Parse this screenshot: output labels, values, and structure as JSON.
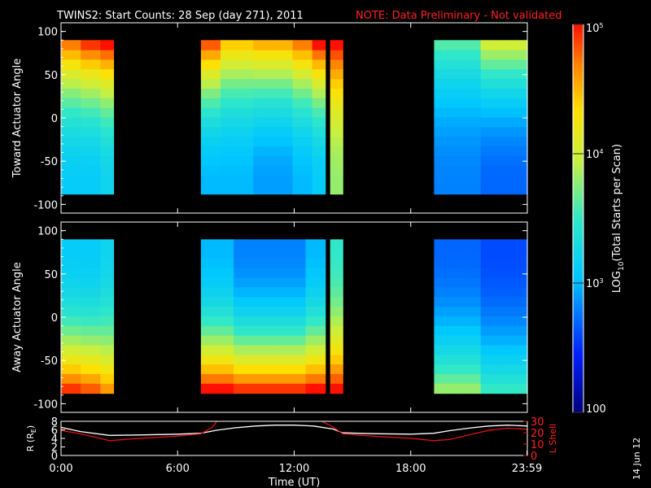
{
  "title": "TWINS2: Start Counts: 28 Sep (day 271), 2011",
  "note": "NOTE: Data Preliminary - Not validated",
  "datestamp": "14 Jun 12",
  "colors": {
    "background": "#000000",
    "note": "#ff2020",
    "r_line": "#ffffff",
    "l_line": "#e01010"
  },
  "chart_data": [
    {
      "type": "heatmap",
      "name": "toward",
      "ylabel": "Toward Actuator Angle",
      "xlim": [
        0,
        24
      ],
      "ylim": [
        -110,
        110
      ],
      "yticks": [
        100,
        50,
        0,
        -50,
        -100
      ],
      "data_y_range": [
        -88,
        90
      ],
      "time_segments": [
        [
          0.0,
          2.7
        ],
        [
          7.2,
          13.6
        ],
        [
          13.85,
          14.5
        ],
        [
          19.2,
          24.0
        ]
      ],
      "log_counts_by_time": [
        {
          "t": 0.5,
          "lo": 3.1,
          "hi": 4.7
        },
        {
          "t": 1.5,
          "lo": 3.1,
          "hi": 4.9
        },
        {
          "t": 2.5,
          "lo": 3.2,
          "hi": 5.0
        },
        {
          "t": 7.5,
          "lo": 3.0,
          "hi": 4.8
        },
        {
          "t": 9.0,
          "lo": 3.0,
          "hi": 4.4
        },
        {
          "t": 11.0,
          "lo": 2.9,
          "hi": 4.5
        },
        {
          "t": 12.5,
          "lo": 3.0,
          "hi": 4.7
        },
        {
          "t": 13.4,
          "lo": 3.1,
          "hi": 5.0
        },
        {
          "t": 14.2,
          "lo": 3.8,
          "hi": 5.0
        },
        {
          "t": 20.0,
          "lo": 2.8,
          "hi": 3.6
        },
        {
          "t": 23.5,
          "lo": 2.7,
          "hi": 4.0
        }
      ]
    },
    {
      "type": "heatmap",
      "name": "away",
      "ylabel": "Away Actuator Angle",
      "xlim": [
        0,
        24
      ],
      "ylim": [
        -110,
        110
      ],
      "yticks": [
        100,
        50,
        0,
        -50,
        -100
      ],
      "data_y_range": [
        -88,
        90
      ],
      "time_segments": [
        [
          0.0,
          2.7
        ],
        [
          7.2,
          13.6
        ],
        [
          13.85,
          14.5
        ],
        [
          19.2,
          24.0
        ]
      ],
      "log_counts_by_time": [
        {
          "t": 0.5,
          "lo": 3.1,
          "hi": 4.9
        },
        {
          "t": 1.5,
          "lo": 3.1,
          "hi": 4.8
        },
        {
          "t": 2.5,
          "lo": 3.2,
          "hi": 4.6
        },
        {
          "t": 7.5,
          "lo": 3.0,
          "hi": 5.0
        },
        {
          "t": 10.0,
          "lo": 2.8,
          "hi": 4.9
        },
        {
          "t": 12.0,
          "lo": 2.8,
          "hi": 4.9
        },
        {
          "t": 13.4,
          "lo": 3.0,
          "hi": 5.0
        },
        {
          "t": 14.2,
          "lo": 3.5,
          "hi": 5.0
        },
        {
          "t": 20.0,
          "lo": 2.7,
          "hi": 3.8
        },
        {
          "t": 23.5,
          "lo": 2.6,
          "hi": 3.5
        }
      ]
    },
    {
      "type": "line",
      "name": "orbit",
      "xlabel": "Time (UT)",
      "ylabel_left": "R (R",
      "ylabel_left_sub": "E",
      "ylabel_left_end": ")",
      "ylabel_right": "L Shell",
      "xlim": [
        0,
        24
      ],
      "xticks": [
        {
          "v": 0,
          "label": "0:00"
        },
        {
          "v": 6,
          "label": "6:00"
        },
        {
          "v": 12,
          "label": "12:00"
        },
        {
          "v": 18,
          "label": "18:00"
        },
        {
          "v": 23.983,
          "label": "23:59"
        }
      ],
      "ylim_left": [
        0,
        8
      ],
      "yticks_left": [
        8,
        6,
        4,
        2,
        0
      ],
      "ylim_right": [
        0,
        30
      ],
      "yticks_right": [
        30,
        20,
        10,
        0
      ],
      "series": [
        {
          "axis": "left",
          "x": [
            0,
            1,
            2.5,
            4,
            6,
            7.2,
            8,
            9,
            10,
            11,
            12,
            13,
            14,
            14.5,
            16,
            18,
            19.2,
            20,
            21,
            22,
            23,
            24
          ],
          "y": [
            6.6,
            5.6,
            4.7,
            4.8,
            5.0,
            5.2,
            5.9,
            6.5,
            6.9,
            7.1,
            7.1,
            6.9,
            6.2,
            5.3,
            5.1,
            5.0,
            5.2,
            5.8,
            6.4,
            6.9,
            7.1,
            6.9
          ]
        },
        {
          "axis": "right",
          "x": [
            0,
            1,
            2.5,
            4,
            6,
            7.2,
            7.8,
            8.1,
            13.2,
            14.0,
            14.5,
            16,
            18,
            19.2,
            20,
            21,
            22,
            23,
            24
          ],
          "y": [
            22,
            19,
            13,
            15,
            17,
            19,
            25,
            32,
            32,
            25,
            19,
            17,
            15,
            13,
            14,
            18,
            22,
            24,
            23
          ]
        }
      ]
    },
    {
      "type": "colorbar",
      "label": "LOG",
      "label_sub": "10",
      "label_end": "(Total Starts per Scan)",
      "scale": "log",
      "range": [
        100,
        100000
      ],
      "ticks": [
        {
          "exp": 5,
          "label": "10",
          "sup": "5"
        },
        {
          "exp": 4,
          "label": "10",
          "sup": "4"
        },
        {
          "exp": 3,
          "label": "10",
          "sup": "3"
        },
        {
          "exp": 2,
          "label": "100",
          "sup": ""
        }
      ]
    }
  ]
}
